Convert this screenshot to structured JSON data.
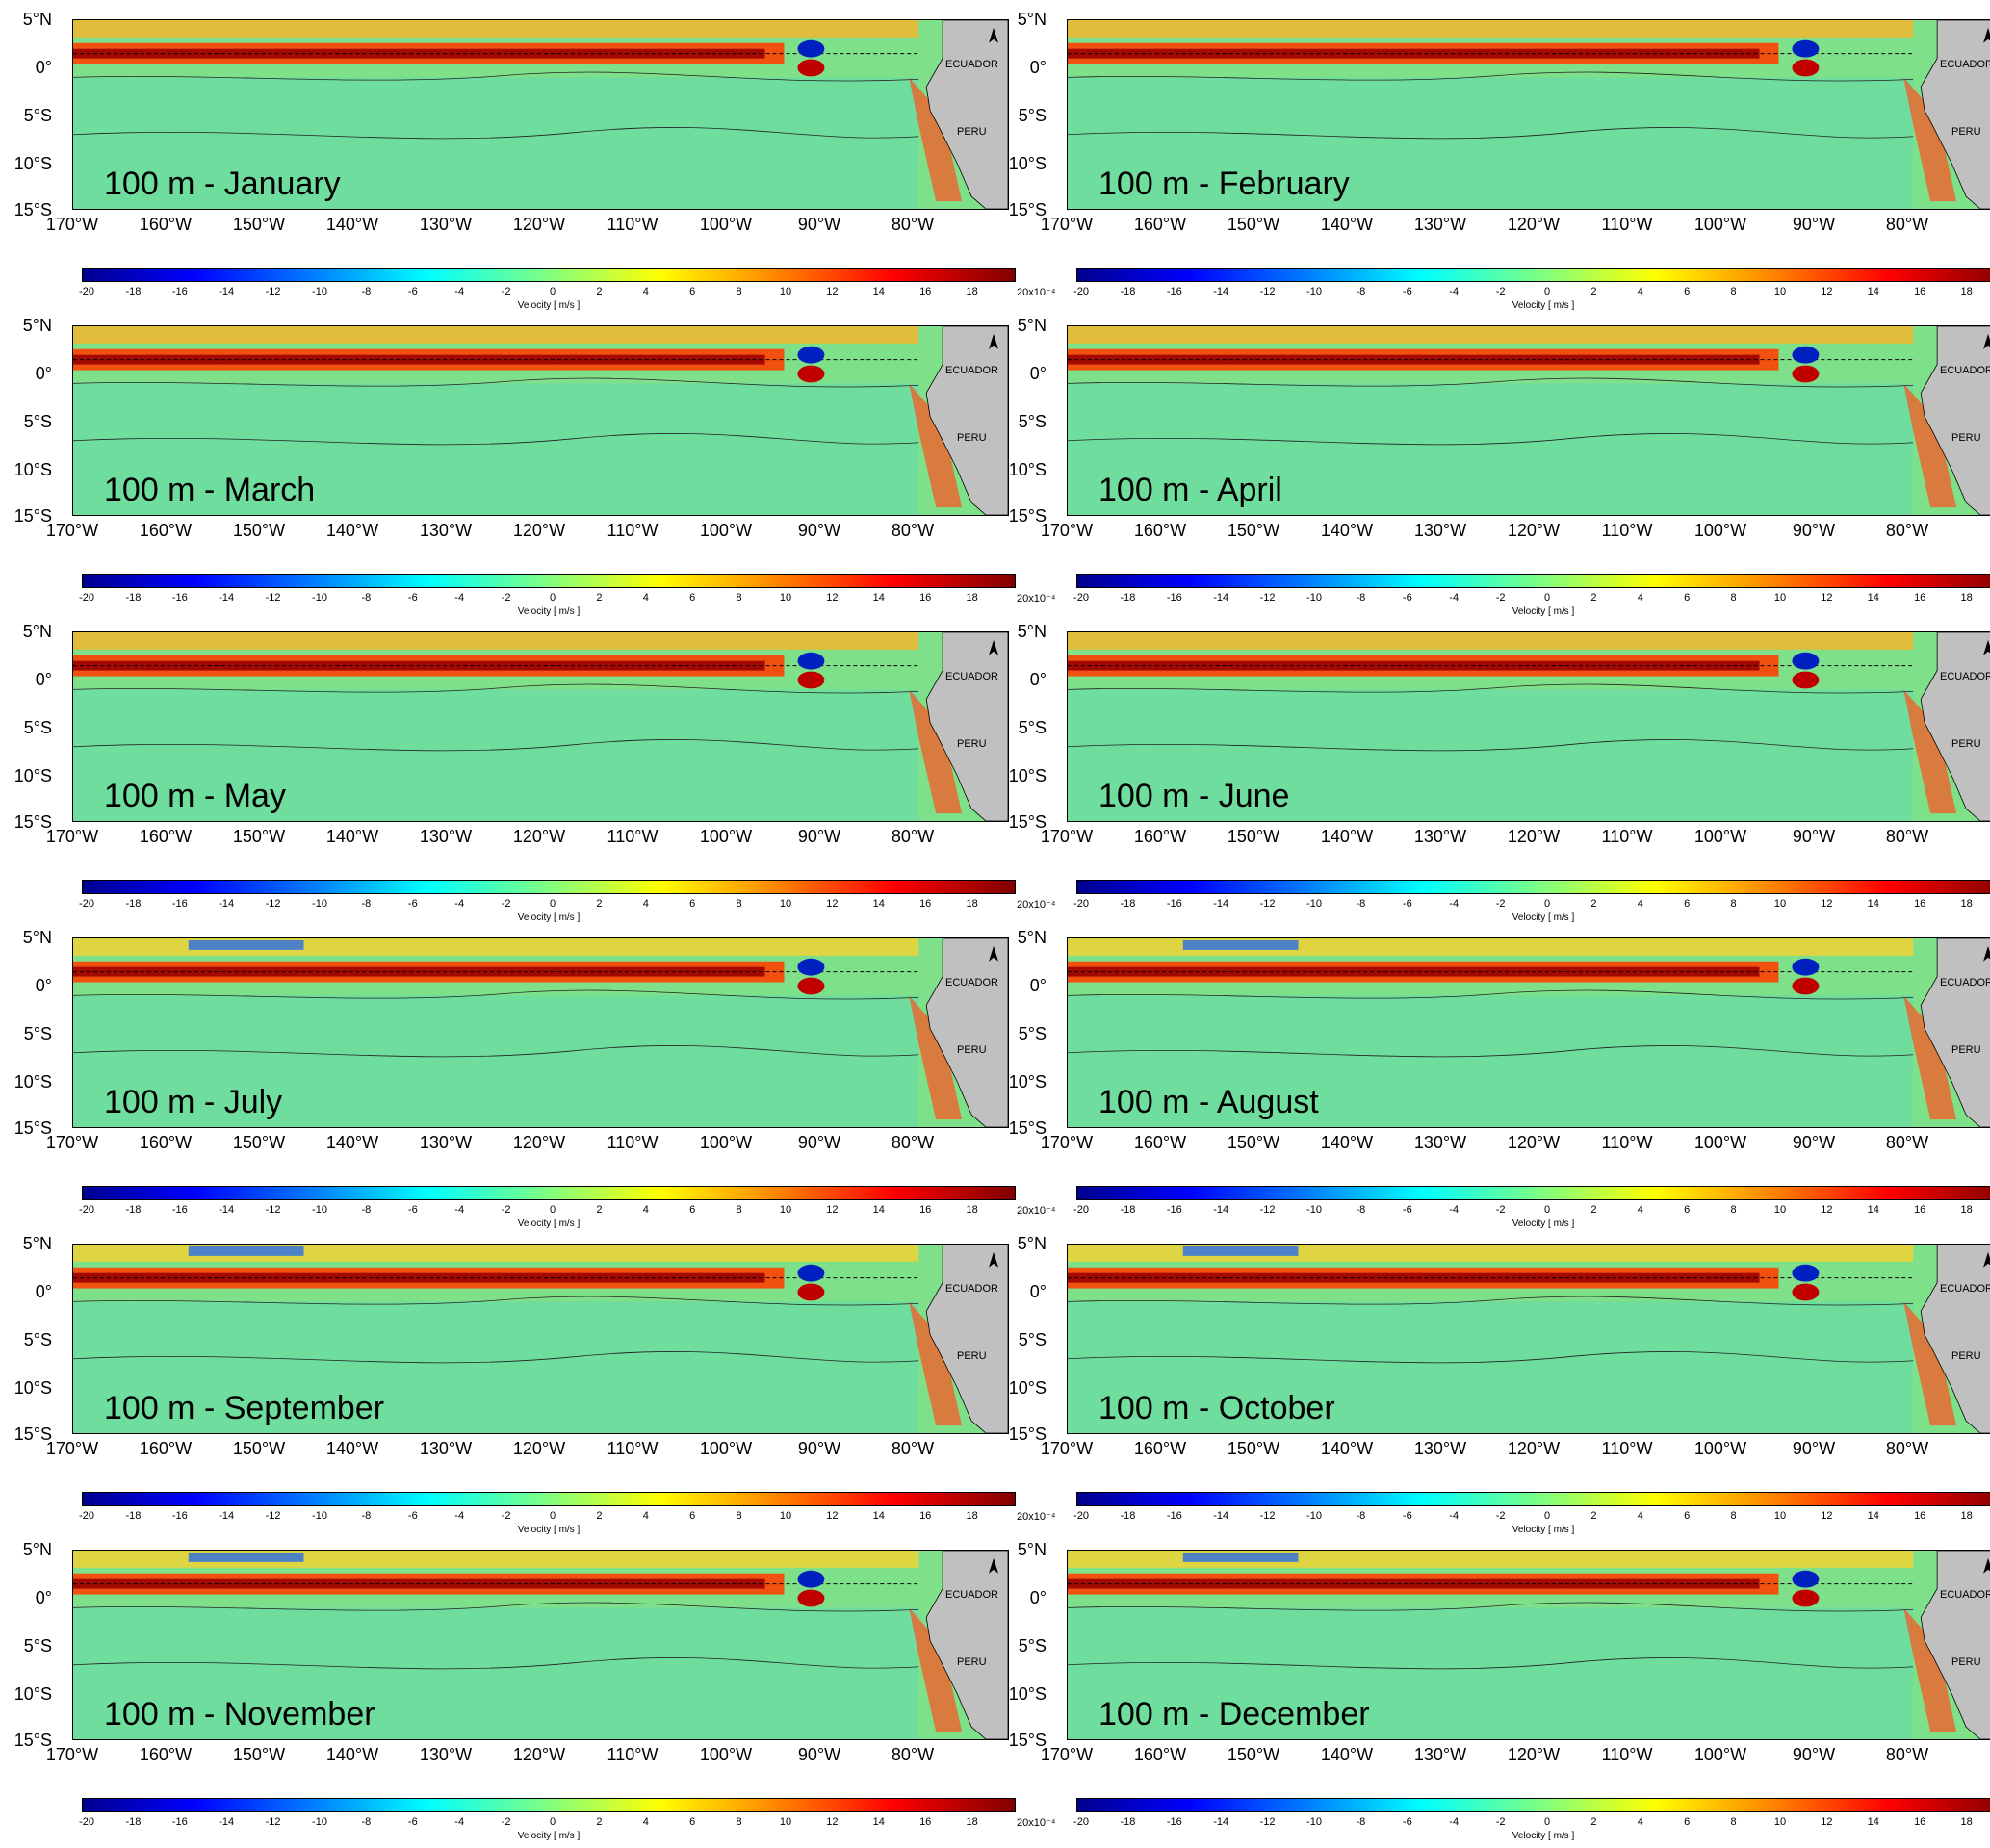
{
  "panels": [
    {
      "label": "100 m - January"
    },
    {
      "label": "100 m - February"
    },
    {
      "label": "100 m - March"
    },
    {
      "label": "100 m - April"
    },
    {
      "label": "100 m - May"
    },
    {
      "label": "100 m - June"
    },
    {
      "label": "100 m - July"
    },
    {
      "label": "100 m - August"
    },
    {
      "label": "100 m - September"
    },
    {
      "label": "100 m - October"
    },
    {
      "label": "100 m - November"
    },
    {
      "label": "100 m - December"
    }
  ],
  "lat_ticks": [
    "5°N",
    "0°",
    "5°S",
    "10°S",
    "15°S"
  ],
  "lon_ticks": [
    "170°W",
    "160°W",
    "150°W",
    "140°W",
    "130°W",
    "120°W",
    "110°W",
    "100°W",
    "90°W",
    "80°W"
  ],
  "countries": [
    "ECUADOR",
    "PERU"
  ],
  "colorbar": {
    "ticks": [
      "-20",
      "-18",
      "-16",
      "-14",
      "-12",
      "-10",
      "-8",
      "-6",
      "-4",
      "-2",
      "0",
      "2",
      "4",
      "6",
      "8",
      "10",
      "12",
      "14",
      "16",
      "18"
    ],
    "exponent_label": "20x10⁻⁴",
    "unit_label": "Velocity [ m/s ]",
    "colors": [
      "#00008f",
      "#0000ff",
      "#0080ff",
      "#00ffff",
      "#80ff80",
      "#ffff00",
      "#ff8000",
      "#ff0000",
      "#800000"
    ]
  }
}
